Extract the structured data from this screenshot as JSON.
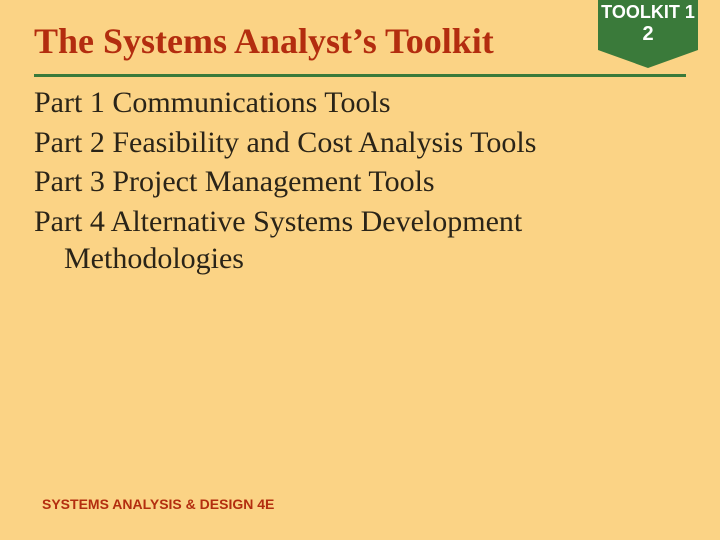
{
  "colors": {
    "background": "#fbd385",
    "title": "#b32d0f",
    "rule": "#3a7a3a",
    "bodyText": "#2a2418",
    "badgeBg": "#3a7a3a",
    "badgeText": "#ffffff",
    "footer": "#b32d0f"
  },
  "badge": {
    "line1": "TOOLKIT 1",
    "line2": "2",
    "triangleHeight": 18
  },
  "title": "The Systems Analyst’s Toolkit",
  "parts": [
    "Part 1  Communications Tools",
    "Part 2  Feasibility and Cost Analysis Tools",
    "Part 3  Project Management Tools",
    "Part 4 Alternative Systems Development Methodologies"
  ],
  "footer": "SYSTEMS ANALYSIS & DESIGN 4E",
  "typography": {
    "titleFontSize": 36,
    "bodyFontSize": 30,
    "footerFontSize": 14
  }
}
